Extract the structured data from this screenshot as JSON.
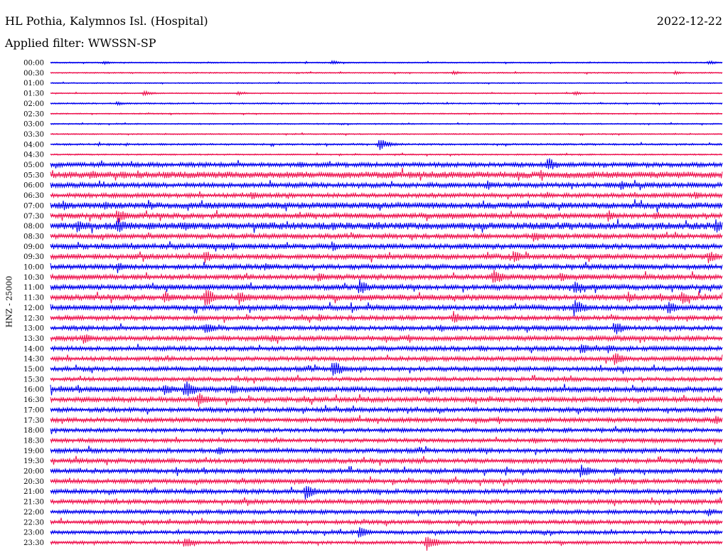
{
  "header": {
    "station": "HL Pothia, Kalymnos Isl. (Hospital)",
    "date": "2022-12-22",
    "filter_text": "Applied filter: WWSSN-SP"
  },
  "axis": {
    "ylabel": "HNZ - 25000"
  },
  "colors": {
    "even_trace": "#0000ee",
    "odd_trace": "#ee1450"
  },
  "chart_data": {
    "type": "line",
    "title": "HL Pothia, Kalymnos Isl. (Hospital)",
    "subtitle": "Applied filter: WWSSN-SP",
    "ylabel": "HNZ - 25000",
    "grid": false,
    "legend": "none",
    "time_labels": [
      "00:00",
      "00:30",
      "01:00",
      "01:30",
      "02:00",
      "02:30",
      "03:00",
      "03:30",
      "04:00",
      "04:30",
      "05:00",
      "05:30",
      "06:00",
      "06:30",
      "07:00",
      "07:30",
      "08:00",
      "08:30",
      "09:00",
      "09:30",
      "10:00",
      "10:30",
      "11:00",
      "11:30",
      "12:00",
      "12:30",
      "13:00",
      "13:30",
      "14:00",
      "14:30",
      "15:00",
      "15:30",
      "16:00",
      "16:30",
      "17:00",
      "17:30",
      "18:00",
      "18:30",
      "19:00",
      "19:30",
      "20:00",
      "20:30",
      "21:00",
      "21:30",
      "22:00",
      "22:30",
      "23:00",
      "23:30"
    ],
    "noise_level": [
      0.6,
      0.6,
      0.55,
      0.55,
      0.7,
      0.6,
      0.6,
      0.6,
      0.9,
      0.7,
      2.2,
      3.2,
      2.4,
      2.2,
      3.0,
      2.6,
      3.4,
      2.4,
      2.6,
      2.6,
      2.4,
      2.6,
      2.6,
      2.8,
      2.6,
      2.2,
      2.2,
      2.4,
      2.2,
      2.2,
      2.2,
      2.0,
      2.6,
      2.4,
      2.2,
      2.2,
      2.0,
      2.0,
      2.2,
      2.2,
      2.2,
      2.2,
      2.2,
      2.2,
      2.0,
      2.0,
      1.8,
      1.6
    ],
    "events": [
      {
        "trace": 0,
        "t": 0.42,
        "a": 3
      },
      {
        "trace": 0,
        "t": 0.08,
        "a": 2.5
      },
      {
        "trace": 0,
        "t": 0.98,
        "a": 3
      },
      {
        "trace": 1,
        "t": 0.6,
        "a": 3
      },
      {
        "trace": 1,
        "t": 0.93,
        "a": 2.5
      },
      {
        "trace": 3,
        "t": 0.14,
        "a": 4
      },
      {
        "trace": 3,
        "t": 0.28,
        "a": 3
      },
      {
        "trace": 3,
        "t": 0.78,
        "a": 3
      },
      {
        "trace": 4,
        "t": 0.1,
        "a": 3
      },
      {
        "trace": 8,
        "t": 0.49,
        "a": 8
      },
      {
        "trace": 10,
        "t": 0.74,
        "a": 10
      },
      {
        "trace": 10,
        "t": 0.37,
        "a": 5
      },
      {
        "trace": 11,
        "t": 0.06,
        "a": 7
      },
      {
        "trace": 11,
        "t": 0.11,
        "a": 5
      },
      {
        "trace": 12,
        "t": 0.65,
        "a": 7
      },
      {
        "trace": 12,
        "t": 0.85,
        "a": 7
      },
      {
        "trace": 13,
        "t": 0.3,
        "a": 6
      },
      {
        "trace": 13,
        "t": 0.96,
        "a": 6
      },
      {
        "trace": 14,
        "t": 0.02,
        "a": 7
      },
      {
        "trace": 14,
        "t": 0.08,
        "a": 6
      },
      {
        "trace": 14,
        "t": 0.15,
        "a": 6
      },
      {
        "trace": 15,
        "t": 0.1,
        "a": 10
      },
      {
        "trace": 15,
        "t": 0.83,
        "a": 8
      },
      {
        "trace": 15,
        "t": 0.9,
        "a": 7
      },
      {
        "trace": 16,
        "t": 0.04,
        "a": 9
      },
      {
        "trace": 16,
        "t": 0.1,
        "a": 11
      },
      {
        "trace": 16,
        "t": 0.2,
        "a": 7
      },
      {
        "trace": 16,
        "t": 0.42,
        "a": 6
      },
      {
        "trace": 16,
        "t": 0.99,
        "a": 10
      },
      {
        "trace": 17,
        "t": 0.72,
        "a": 8
      },
      {
        "trace": 18,
        "t": 0.27,
        "a": 6
      },
      {
        "trace": 18,
        "t": 0.42,
        "a": 7
      },
      {
        "trace": 19,
        "t": 0.23,
        "a": 9
      },
      {
        "trace": 19,
        "t": 0.69,
        "a": 9
      },
      {
        "trace": 19,
        "t": 0.98,
        "a": 9
      },
      {
        "trace": 20,
        "t": 0.1,
        "a": 8
      },
      {
        "trace": 20,
        "t": 0.32,
        "a": 6
      },
      {
        "trace": 21,
        "t": 0.4,
        "a": 8
      },
      {
        "trace": 21,
        "t": 0.66,
        "a": 11
      },
      {
        "trace": 21,
        "t": 0.76,
        "a": 7
      },
      {
        "trace": 22,
        "t": 0.46,
        "a": 11
      },
      {
        "trace": 22,
        "t": 0.78,
        "a": 9
      },
      {
        "trace": 23,
        "t": 0.17,
        "a": 8
      },
      {
        "trace": 23,
        "t": 0.23,
        "a": 13
      },
      {
        "trace": 23,
        "t": 0.28,
        "a": 11
      },
      {
        "trace": 23,
        "t": 0.86,
        "a": 8
      },
      {
        "trace": 23,
        "t": 0.94,
        "a": 9
      },
      {
        "trace": 24,
        "t": 0.78,
        "a": 12
      },
      {
        "trace": 24,
        "t": 0.92,
        "a": 9
      },
      {
        "trace": 25,
        "t": 0.6,
        "a": 9
      },
      {
        "trace": 25,
        "t": 0.4,
        "a": 5
      },
      {
        "trace": 26,
        "t": 0.23,
        "a": 9
      },
      {
        "trace": 26,
        "t": 0.84,
        "a": 10
      },
      {
        "trace": 26,
        "t": 0.58,
        "a": 6
      },
      {
        "trace": 27,
        "t": 0.05,
        "a": 8
      },
      {
        "trace": 27,
        "t": 0.33,
        "a": 6
      },
      {
        "trace": 28,
        "t": 0.79,
        "a": 8
      },
      {
        "trace": 28,
        "t": 0.83,
        "a": 7
      },
      {
        "trace": 29,
        "t": 0.84,
        "a": 9
      },
      {
        "trace": 30,
        "t": 0.42,
        "a": 12
      },
      {
        "trace": 32,
        "t": 0.17,
        "a": 9
      },
      {
        "trace": 32,
        "t": 0.2,
        "a": 13
      },
      {
        "trace": 32,
        "t": 0.27,
        "a": 7
      },
      {
        "trace": 33,
        "t": 0.22,
        "a": 10
      },
      {
        "trace": 35,
        "t": 0.99,
        "a": 7
      },
      {
        "trace": 38,
        "t": 0.25,
        "a": 6
      },
      {
        "trace": 40,
        "t": 0.79,
        "a": 10
      },
      {
        "trace": 40,
        "t": 0.84,
        "a": 6
      },
      {
        "trace": 41,
        "t": 0.37,
        "a": 5
      },
      {
        "trace": 42,
        "t": 0.38,
        "a": 11
      },
      {
        "trace": 44,
        "t": 0.98,
        "a": 6
      },
      {
        "trace": 46,
        "t": 0.46,
        "a": 8
      },
      {
        "trace": 47,
        "t": 0.2,
        "a": 8
      },
      {
        "trace": 47,
        "t": 0.56,
        "a": 11
      }
    ]
  }
}
